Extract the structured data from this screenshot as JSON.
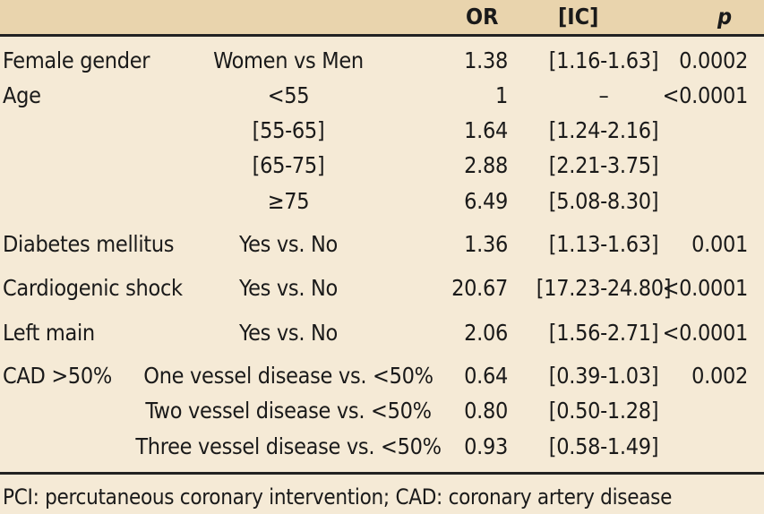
{
  "header": {
    "or": "OR",
    "ic": "[IC]",
    "p": "p"
  },
  "rows": [
    {
      "variable": "Female gender",
      "comparison": "Women vs Men",
      "or": "1.38",
      "ic": "[1.16-1.63]",
      "p": "0.0002"
    },
    {
      "variable": "Age",
      "comparison": "<55",
      "or": "1",
      "ic": "–",
      "p": "<0.0001"
    },
    {
      "variable": "",
      "comparison": "[55-65]",
      "or": "1.64",
      "ic": "[1.24-2.16]",
      "p": ""
    },
    {
      "variable": "",
      "comparison": "[65-75]",
      "or": "2.88",
      "ic": "[2.21-3.75]",
      "p": ""
    },
    {
      "variable": "",
      "comparison": "≥75",
      "or": "6.49",
      "ic": "[5.08-8.30]",
      "p": ""
    },
    {
      "variable": "Diabetes mellitus",
      "comparison": "Yes vs. No",
      "or": "1.36",
      "ic": "[1.13-1.63]",
      "p": "0.001"
    },
    {
      "variable": "Cardiogenic shock",
      "comparison": "Yes vs. No",
      "or": "20.67",
      "ic": "[17.23-24.80]",
      "p": "<0.0001"
    },
    {
      "variable": "Left main",
      "comparison": "Yes vs. No",
      "or": "2.06",
      "ic": "[1.56-2.71]",
      "p": "<0.0001"
    },
    {
      "variable": "CAD >50%",
      "comparison": "One vessel disease vs. <50%",
      "or": "0.64",
      "ic": "[0.39-1.03]",
      "p": "0.002"
    },
    {
      "variable": "",
      "comparison": "Two vessel disease vs. <50%",
      "or": "0.80",
      "ic": "[0.50-1.28]",
      "p": ""
    },
    {
      "variable": "",
      "comparison": "Three vessel disease vs. <50%",
      "or": "0.93",
      "ic": "[0.58-1.49]",
      "p": ""
    }
  ],
  "footnote": "PCI: percutaneous coronary intervention; CAD: coronary artery disease",
  "colors": {
    "background": "#f5ead6",
    "header_band": "#e9d4ad",
    "rule": "#222222",
    "text": "#1a1a1a"
  }
}
